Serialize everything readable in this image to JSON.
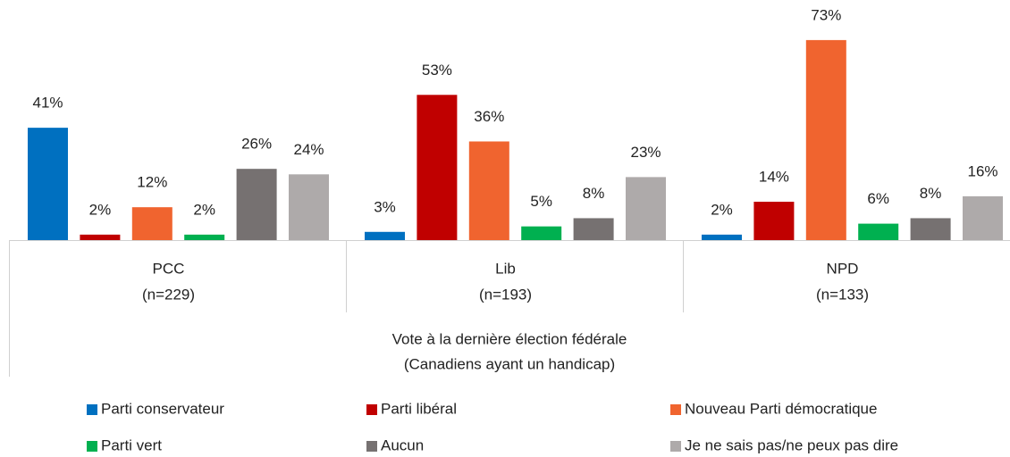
{
  "chart_data": {
    "type": "bar",
    "categories": [
      [
        "PCC",
        "(n=229)"
      ],
      [
        "Lib",
        "(n=193)"
      ],
      [
        "NPD",
        "(n=133)"
      ]
    ],
    "xlabel": [
      "Vote à la dernière élection fédérale",
      "(Canadiens ayant un handicap)"
    ],
    "series": [
      {
        "name": "Parti conservateur",
        "color": "#0070C0",
        "values": [
          41,
          3,
          2
        ],
        "value_labels": [
          "41%",
          "3%",
          "2%"
        ]
      },
      {
        "name": "Parti libéral",
        "color": "#C00000",
        "values": [
          2,
          53,
          14
        ],
        "value_labels": [
          "2%",
          "53%",
          "14%"
        ]
      },
      {
        "name": "Nouveau Parti démocratique",
        "color": "#F0642F",
        "values": [
          12,
          36,
          73
        ],
        "value_labels": [
          "12%",
          "36%",
          "73%"
        ]
      },
      {
        "name": "Parti vert",
        "color": "#00B050",
        "values": [
          2,
          5,
          6
        ],
        "value_labels": [
          "2%",
          "5%",
          "6%"
        ]
      },
      {
        "name": "Aucun",
        "color": "#767171",
        "values": [
          26,
          8,
          8
        ],
        "value_labels": [
          "26%",
          "8%",
          "8%"
        ]
      },
      {
        "name": "Je ne sais pas/ne peux pas dire",
        "color": "#AEAAAA",
        "values": [
          24,
          23,
          16
        ],
        "value_labels": [
          "24%",
          "23%",
          "16%"
        ]
      }
    ],
    "legend": "bottom"
  }
}
